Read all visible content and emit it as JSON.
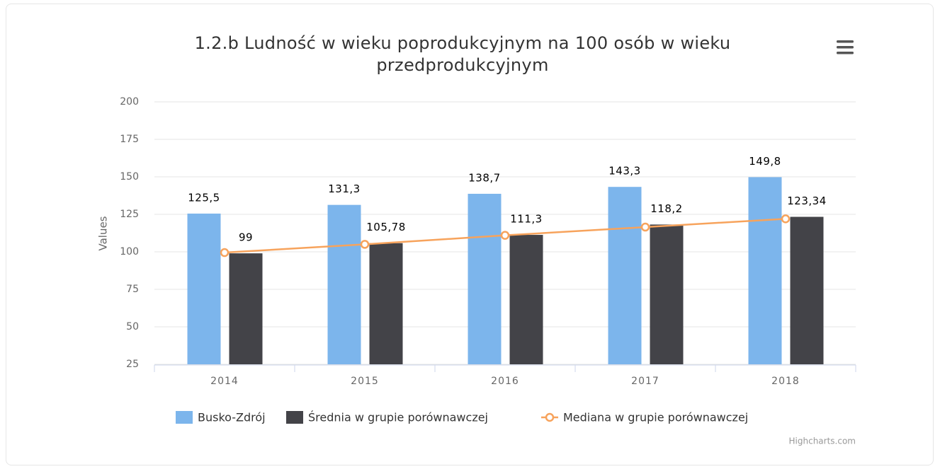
{
  "chart_data": {
    "type": "combo",
    "title": "1.2.b Ludność w wieku poprodukcyjnym na 100 osób w wieku przedprodukcyjnym",
    "y_label": "Values",
    "credits": "Highcharts.com",
    "categories": [
      "2014",
      "2015",
      "2016",
      "2017",
      "2018"
    ],
    "series": [
      {
        "name": "Busko-Zdrój",
        "type": "bar",
        "color": "#7cb5ec",
        "values": [
          125.5,
          131.3,
          138.7,
          143.3,
          149.8
        ],
        "value_labels": [
          "125,5",
          "131,3",
          "138,7",
          "143,3",
          "149,8"
        ]
      },
      {
        "name": "Średnia w grupie porównawczej",
        "type": "bar",
        "color": "#434348",
        "values": [
          99,
          105.78,
          111.3,
          118.2,
          123.34
        ],
        "value_labels": [
          "99",
          "105,78",
          "111,3",
          "118,2",
          "123,34"
        ]
      },
      {
        "name": "Mediana w grupie porównawczej",
        "type": "line",
        "color": "#f7a35c",
        "values": [
          99.5,
          105,
          111,
          116.5,
          122
        ]
      }
    ],
    "ylim": [
      25,
      200
    ],
    "yticks": [
      25,
      50,
      75,
      100,
      125,
      150,
      175,
      200
    ],
    "grid": true
  }
}
